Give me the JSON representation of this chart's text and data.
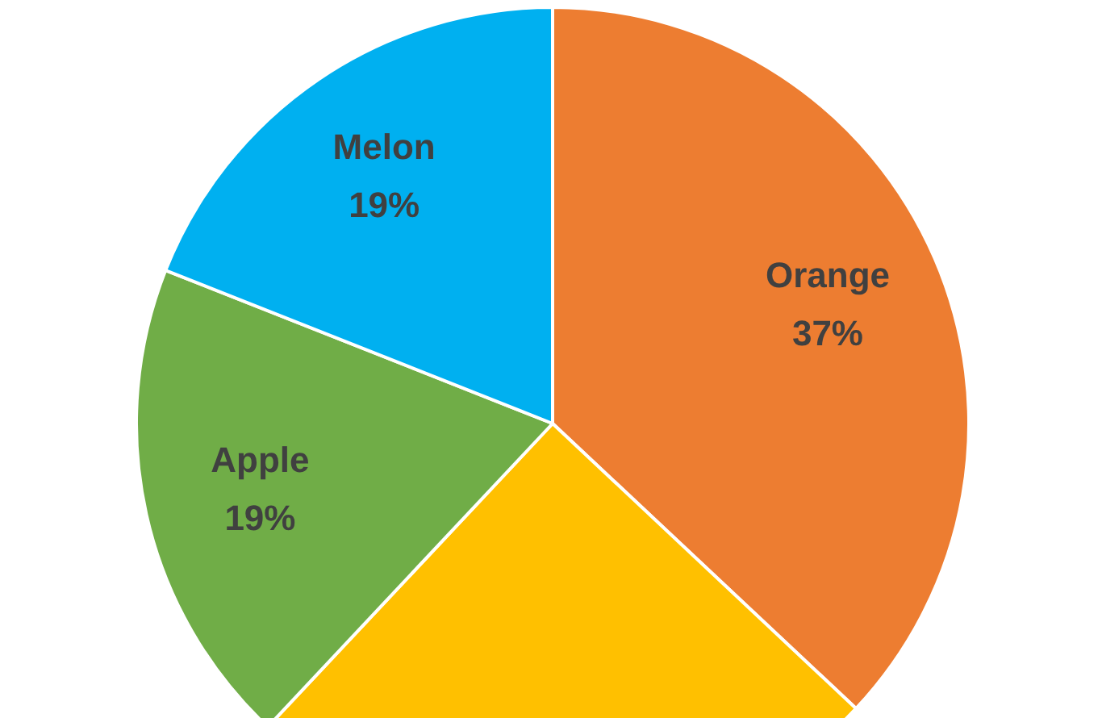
{
  "chart_data": {
    "type": "pie",
    "categories": [
      "Orange",
      null,
      "Apple",
      "Melon"
    ],
    "values": [
      37,
      25,
      19,
      19
    ],
    "value_labels": [
      "37%",
      null,
      "19%",
      "19%"
    ],
    "colors": [
      "#ed7d31",
      "#ffc000",
      "#70ad47",
      "#00b0f0"
    ]
  }
}
